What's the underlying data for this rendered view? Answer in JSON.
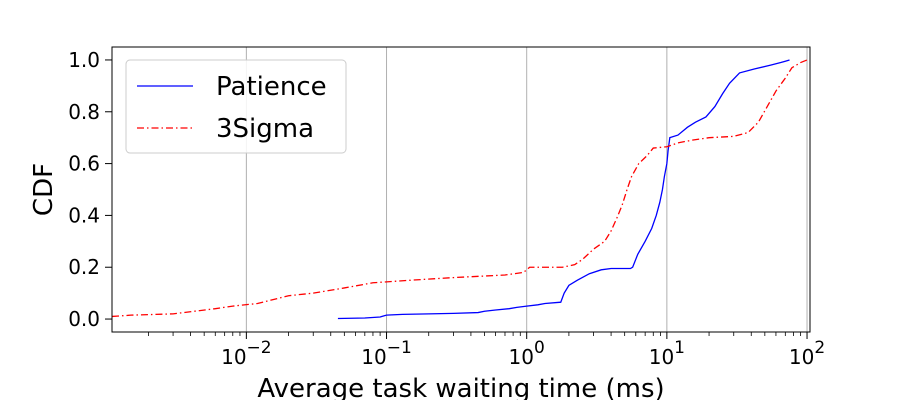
{
  "chart_data": {
    "type": "line",
    "title": "",
    "xlabel": "Average task waiting time (ms)",
    "ylabel": "CDF",
    "x_scale": "log",
    "xlim": [
      0.0011,
      105
    ],
    "ylim": [
      -0.05,
      1.05
    ],
    "x_ticks": [
      0.01,
      0.1,
      1,
      10,
      100
    ],
    "x_tick_labels": [
      {
        "base": "10",
        "exp": "−2"
      },
      {
        "base": "10",
        "exp": "−1"
      },
      {
        "base": "10",
        "exp": "0"
      },
      {
        "base": "10",
        "exp": "1"
      },
      {
        "base": "10",
        "exp": "2"
      }
    ],
    "y_ticks": [
      0.0,
      0.2,
      0.4,
      0.6,
      0.8,
      1.0
    ],
    "y_tick_labels": [
      "0.0",
      "0.2",
      "0.4",
      "0.6",
      "0.8",
      "1.0"
    ],
    "grid": "x-major",
    "legend_position": "upper-left",
    "series": [
      {
        "name": "Patience",
        "color": "#0000ff",
        "line_style": "solid",
        "points": [
          [
            0.045,
            0.002
          ],
          [
            0.07,
            0.004
          ],
          [
            0.09,
            0.008
          ],
          [
            0.1,
            0.015
          ],
          [
            0.13,
            0.018
          ],
          [
            0.2,
            0.02
          ],
          [
            0.3,
            0.022
          ],
          [
            0.45,
            0.025
          ],
          [
            0.5,
            0.03
          ],
          [
            0.6,
            0.035
          ],
          [
            0.75,
            0.04
          ],
          [
            0.85,
            0.045
          ],
          [
            1.0,
            0.05
          ],
          [
            1.2,
            0.055
          ],
          [
            1.35,
            0.06
          ],
          [
            1.75,
            0.065
          ],
          [
            1.85,
            0.1
          ],
          [
            2.0,
            0.13
          ],
          [
            2.3,
            0.15
          ],
          [
            2.8,
            0.175
          ],
          [
            3.4,
            0.19
          ],
          [
            4.0,
            0.195
          ],
          [
            5.5,
            0.195
          ],
          [
            5.7,
            0.2
          ],
          [
            6.2,
            0.25
          ],
          [
            7.0,
            0.3
          ],
          [
            7.8,
            0.35
          ],
          [
            8.4,
            0.4
          ],
          [
            8.9,
            0.45
          ],
          [
            9.3,
            0.5
          ],
          [
            9.6,
            0.55
          ],
          [
            10.0,
            0.6
          ],
          [
            10.2,
            0.65
          ],
          [
            10.5,
            0.7
          ],
          [
            12.0,
            0.71
          ],
          [
            14.0,
            0.74
          ],
          [
            16.0,
            0.76
          ],
          [
            19.0,
            0.78
          ],
          [
            22.0,
            0.82
          ],
          [
            25.0,
            0.87
          ],
          [
            28.0,
            0.91
          ],
          [
            33.0,
            0.95
          ],
          [
            42.0,
            0.965
          ],
          [
            55.0,
            0.98
          ],
          [
            65.0,
            0.99
          ],
          [
            70.0,
            0.995
          ],
          [
            75.0,
            1.0
          ]
        ]
      },
      {
        "name": "3Sigma",
        "color": "#ff0000",
        "line_style": "dashdot",
        "points": [
          [
            0.0011,
            0.01
          ],
          [
            0.0015,
            0.015
          ],
          [
            0.003,
            0.02
          ],
          [
            0.006,
            0.04
          ],
          [
            0.008,
            0.05
          ],
          [
            0.012,
            0.06
          ],
          [
            0.02,
            0.09
          ],
          [
            0.03,
            0.1
          ],
          [
            0.05,
            0.12
          ],
          [
            0.08,
            0.14
          ],
          [
            0.15,
            0.15
          ],
          [
            0.3,
            0.16
          ],
          [
            0.7,
            0.17
          ],
          [
            0.95,
            0.18
          ],
          [
            1.05,
            0.2
          ],
          [
            1.8,
            0.2
          ],
          [
            2.2,
            0.21
          ],
          [
            2.5,
            0.23
          ],
          [
            3.0,
            0.27
          ],
          [
            3.6,
            0.3
          ],
          [
            4.0,
            0.34
          ],
          [
            4.4,
            0.39
          ],
          [
            4.8,
            0.44
          ],
          [
            5.2,
            0.5
          ],
          [
            5.6,
            0.55
          ],
          [
            6.3,
            0.6
          ],
          [
            7.2,
            0.63
          ],
          [
            8.0,
            0.66
          ],
          [
            10.0,
            0.665
          ],
          [
            12.0,
            0.68
          ],
          [
            15.0,
            0.69
          ],
          [
            20.0,
            0.7
          ],
          [
            30.0,
            0.705
          ],
          [
            38.0,
            0.72
          ],
          [
            45.0,
            0.76
          ],
          [
            52.0,
            0.82
          ],
          [
            60.0,
            0.88
          ],
          [
            70.0,
            0.93
          ],
          [
            78.0,
            0.97
          ],
          [
            90.0,
            0.99
          ],
          [
            100.0,
            1.0
          ]
        ]
      }
    ]
  }
}
